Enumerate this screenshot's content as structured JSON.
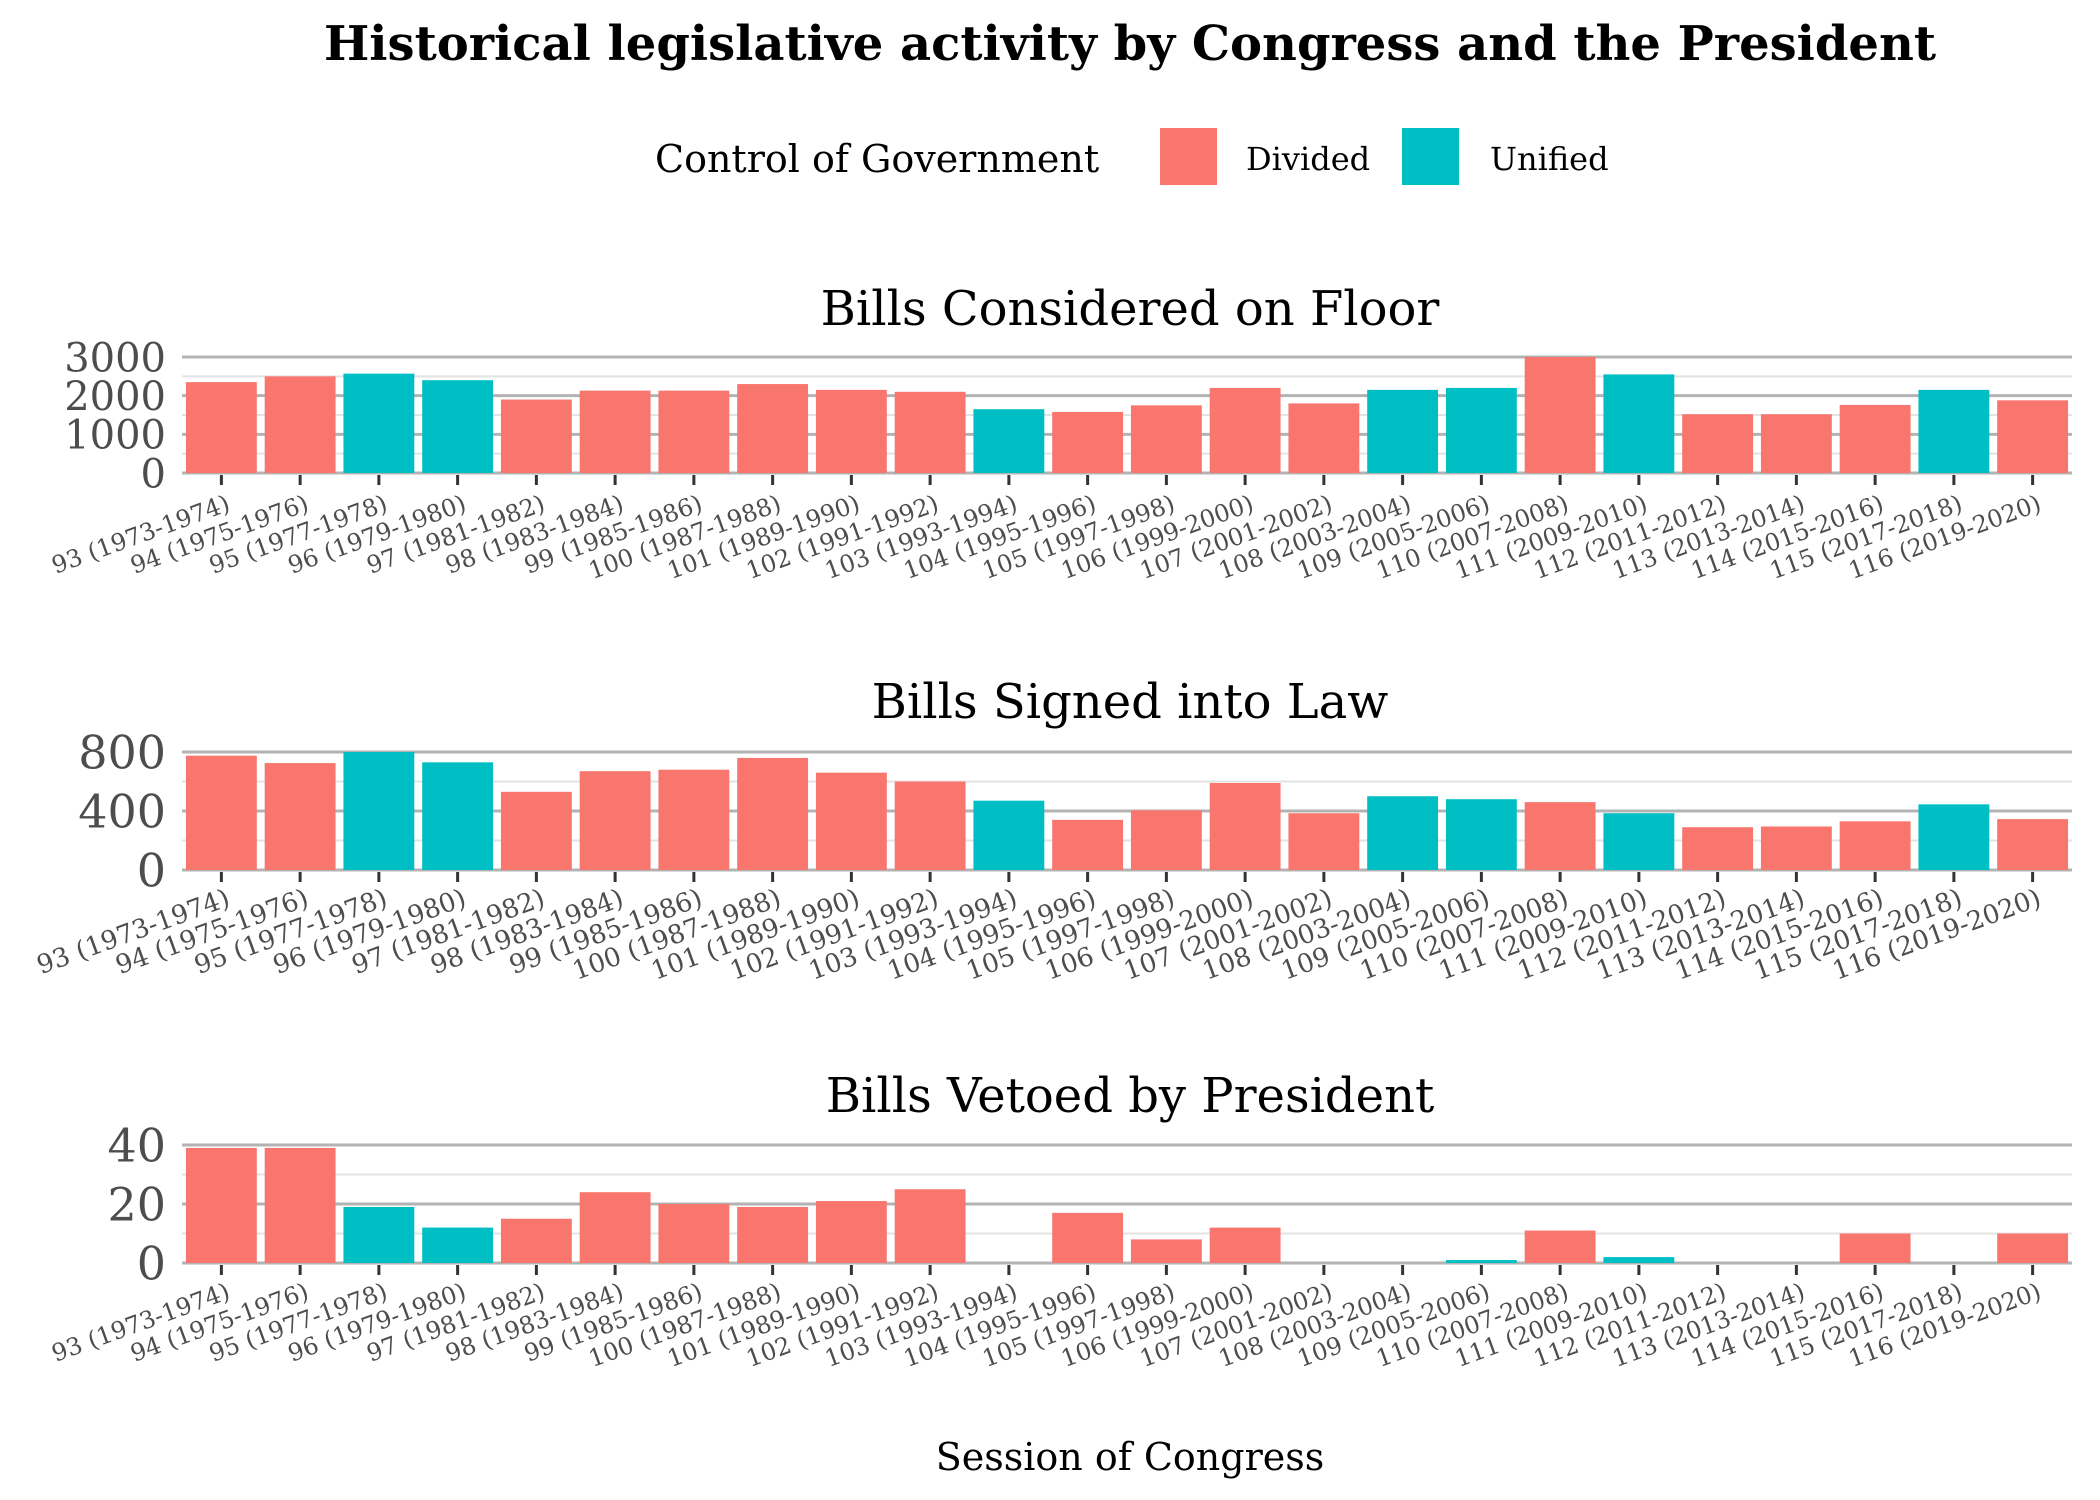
{
  "title": "Historical legislative activity by Congress and the President",
  "xlabel": "Session of Congress",
  "legend": {
    "title": "Control of Government",
    "items": [
      {
        "label": "Divided",
        "color": "#F8766D"
      },
      {
        "label": "Unified",
        "color": "#00BFC4"
      }
    ]
  },
  "chart_data": {
    "type": "bar",
    "categories": [
      "93 (1973-1974)",
      "94 (1975-1976)",
      "95 (1977-1978)",
      "96 (1979-1980)",
      "97 (1981-1982)",
      "98 (1983-1984)",
      "99 (1985-1986)",
      "100 (1987-1988)",
      "101 (1989-1990)",
      "102 (1991-1992)",
      "103 (1993-1994)",
      "104 (1995-1996)",
      "105 (1997-1998)",
      "106 (1999-2000)",
      "107 (2001-2002)",
      "108 (2003-2004)",
      "109 (2005-2006)",
      "110 (2007-2008)",
      "111 (2009-2010)",
      "112 (2011-2012)",
      "113 (2013-2014)",
      "114 (2015-2016)",
      "115 (2017-2018)",
      "116 (2019-2020)"
    ],
    "control": [
      "Divided",
      "Divided",
      "Unified",
      "Unified",
      "Divided",
      "Divided",
      "Divided",
      "Divided",
      "Divided",
      "Divided",
      "Unified",
      "Divided",
      "Divided",
      "Divided",
      "Divided",
      "Unified",
      "Unified",
      "Divided",
      "Unified",
      "Divided",
      "Divided",
      "Divided",
      "Unified",
      "Divided"
    ],
    "panels": [
      {
        "title": "Bills Considered on Floor",
        "ylim": [
          0,
          3000
        ],
        "yticks": [
          0,
          1000,
          2000,
          3000
        ],
        "values": [
          2350,
          2500,
          2570,
          2400,
          1900,
          2130,
          2130,
          2300,
          2150,
          2100,
          1650,
          1580,
          1750,
          2200,
          1800,
          2150,
          2200,
          3000,
          2550,
          1520,
          1520,
          1760,
          2150,
          1880
        ]
      },
      {
        "title": "Bills Signed into Law",
        "ylim": [
          0,
          800
        ],
        "yticks": [
          0,
          400,
          800
        ],
        "values": [
          775,
          725,
          800,
          730,
          530,
          670,
          680,
          760,
          660,
          600,
          470,
          340,
          405,
          590,
          385,
          500,
          480,
          460,
          385,
          290,
          295,
          330,
          445,
          345
        ]
      },
      {
        "title": "Bills Vetoed by President",
        "ylim": [
          0,
          40
        ],
        "yticks": [
          0,
          20,
          40
        ],
        "values": [
          39,
          39,
          19,
          12,
          15,
          24,
          20,
          19,
          21,
          25,
          0,
          17,
          8,
          12,
          0,
          0,
          1,
          11,
          2,
          0,
          0,
          10,
          0,
          10
        ]
      }
    ]
  }
}
